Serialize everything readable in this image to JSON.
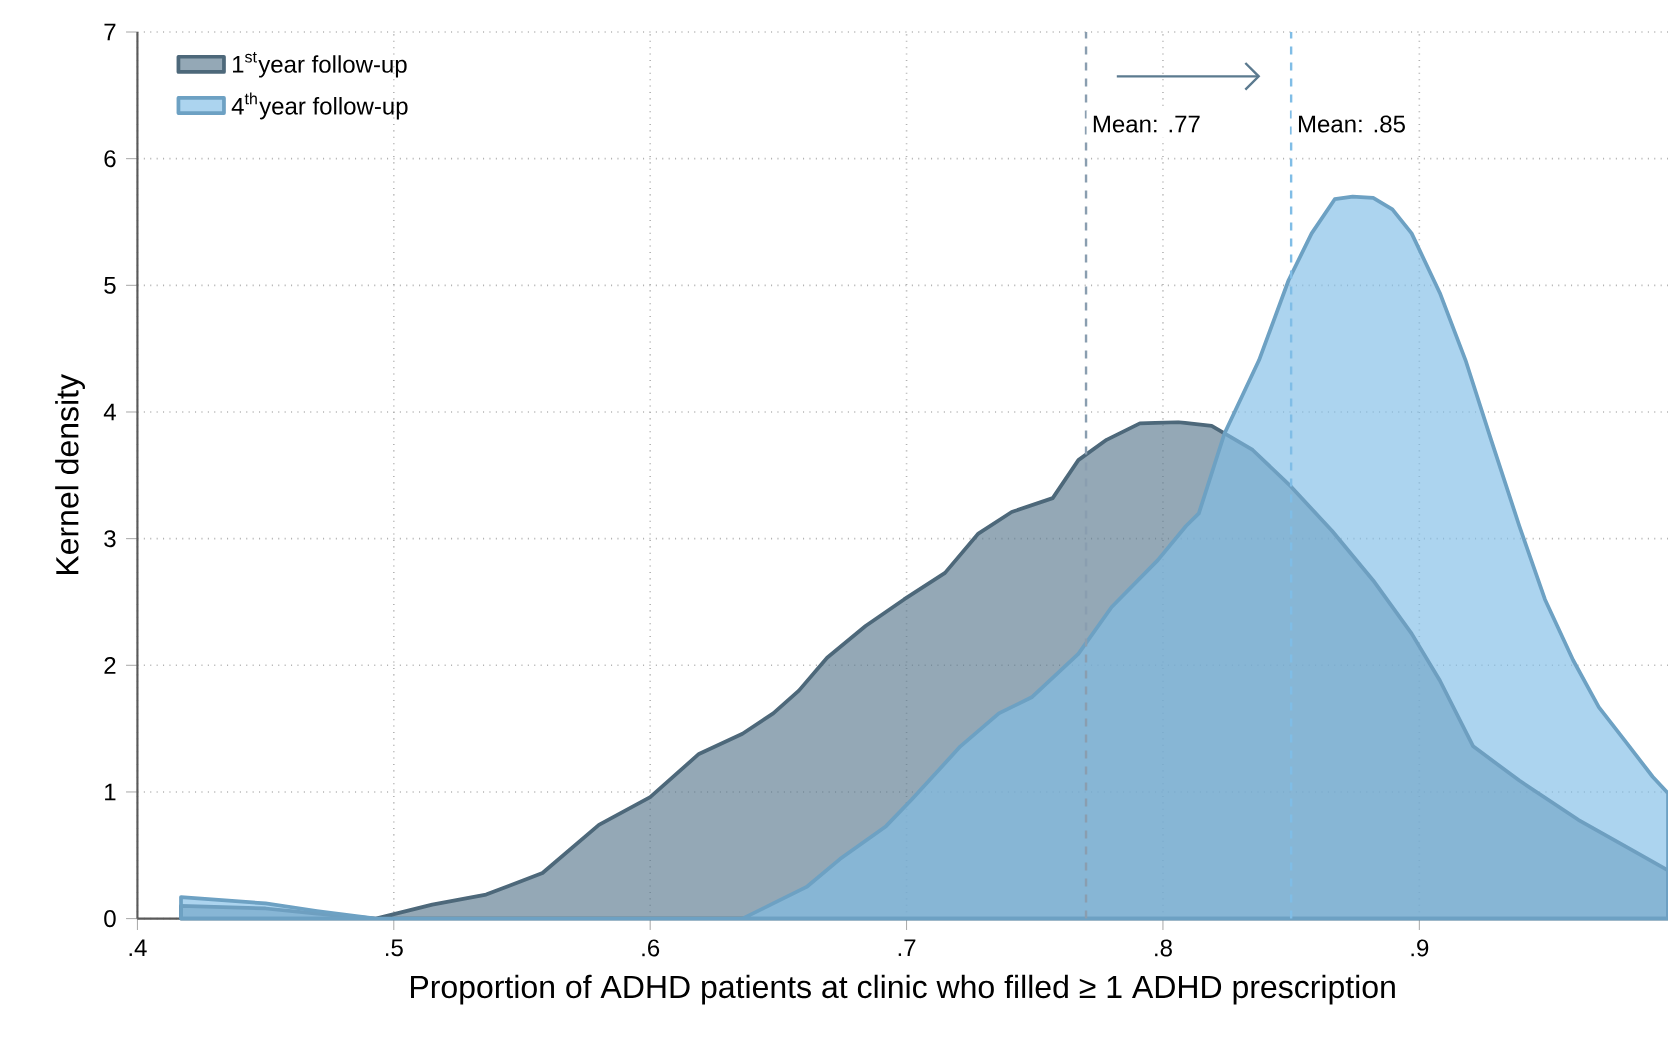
{
  "chart_data": {
    "type": "area",
    "xlabel": "Proportion of ADHD patients at clinic who filled ≥ 1 ADHD prescription",
    "ylabel": "Kernel density",
    "xlim": [
      0.4,
      0.997
    ],
    "ylim": [
      0,
      7
    ],
    "xticks": [
      {
        "value": 0.4,
        "label": ".4"
      },
      {
        "value": 0.5,
        "label": ".5"
      },
      {
        "value": 0.6,
        "label": ".6"
      },
      {
        "value": 0.7,
        "label": ".7"
      },
      {
        "value": 0.8,
        "label": ".8"
      },
      {
        "value": 0.9,
        "label": ".9"
      }
    ],
    "yticks": [
      0,
      1,
      2,
      3,
      4,
      5,
      6,
      7
    ],
    "grid": true,
    "legend": "top left",
    "series": [
      {
        "name": "1$^{st}$year follow-up",
        "color": "#5b7a8f",
        "x": [
          0.417,
          0.45,
          0.47,
          0.493,
          0.515,
          0.536,
          0.558,
          0.58,
          0.6,
          0.619,
          0.636,
          0.648,
          0.658,
          0.669,
          0.684,
          0.699,
          0.715,
          0.728,
          0.741,
          0.757,
          0.767,
          0.778,
          0.791,
          0.806,
          0.819,
          0.835,
          0.85,
          0.866,
          0.882,
          0.897,
          0.908,
          0.921,
          0.939,
          0.962,
          0.983,
          0.997
        ],
        "values": [
          0.1,
          0.08,
          0.04,
          0,
          0.11,
          0.19,
          0.36,
          0.74,
          0.96,
          1.3,
          1.46,
          1.62,
          1.8,
          2.06,
          2.31,
          2.52,
          2.73,
          3.04,
          3.21,
          3.32,
          3.62,
          3.78,
          3.91,
          3.92,
          3.89,
          3.7,
          3.41,
          3.06,
          2.67,
          2.25,
          1.88,
          1.36,
          1.09,
          0.78,
          0.54,
          0.38
        ]
      },
      {
        "name": "4$^{th}$year follow-up",
        "color": "#80bde6",
        "x": [
          0.417,
          0.45,
          0.47,
          0.493,
          0.55,
          0.6,
          0.636,
          0.648,
          0.661,
          0.674,
          0.692,
          0.702,
          0.721,
          0.736,
          0.749,
          0.767,
          0.78,
          0.798,
          0.809,
          0.814,
          0.824,
          0.8375,
          0.849,
          0.858,
          0.867,
          0.874,
          0.882,
          0.8895,
          0.897,
          0.908,
          0.918,
          0.928,
          0.939,
          0.949,
          0.96,
          0.97,
          0.98,
          0.991,
          0.997
        ],
        "values": [
          0.17,
          0.12,
          0.06,
          0,
          0,
          0,
          0,
          0.12,
          0.25,
          0.47,
          0.73,
          0.94,
          1.36,
          1.62,
          1.75,
          2.09,
          2.46,
          2.83,
          3.1,
          3.2,
          3.83,
          4.41,
          5.04,
          5.41,
          5.68,
          5.7,
          5.69,
          5.6,
          5.41,
          4.94,
          4.41,
          3.78,
          3.1,
          2.52,
          2.04,
          1.67,
          1.41,
          1.12,
          0.99
        ]
      }
    ],
    "ref_lines": [
      {
        "axis": "x",
        "value": 0.77,
        "label": "Mean: .77",
        "color": "#8a9eb0",
        "line_style": "dashed"
      },
      {
        "axis": "x",
        "value": 0.85,
        "label": "Mean: .85",
        "color": "#80bde6",
        "line_style": "dashed"
      }
    ]
  }
}
